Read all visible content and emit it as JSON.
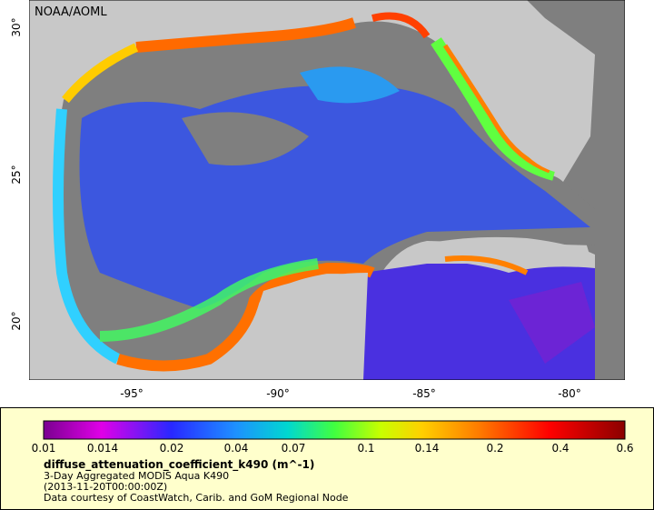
{
  "map": {
    "credit": "NOAA/AOML",
    "x_tick_labels": [
      "-95°",
      "-90°",
      "-85°",
      "-80°"
    ],
    "y_tick_labels": [
      "30°",
      "25°",
      "20°"
    ]
  },
  "legend": {
    "tick_labels": [
      "0.01",
      "0.014",
      "0.02",
      "0.04",
      "0.07",
      "0.1",
      "0.14",
      "0.2",
      "0.4",
      "0.6"
    ],
    "variable": "diffuse_attenuation_coefficient_k490 (m^-1)",
    "dataset": "3-Day Aggregated MODIS Aqua K490",
    "time": "(2013-11-20T00:00:00Z)",
    "source": "Data courtesy of CoastWatch, Carib. and GoM Regional Node"
  }
}
